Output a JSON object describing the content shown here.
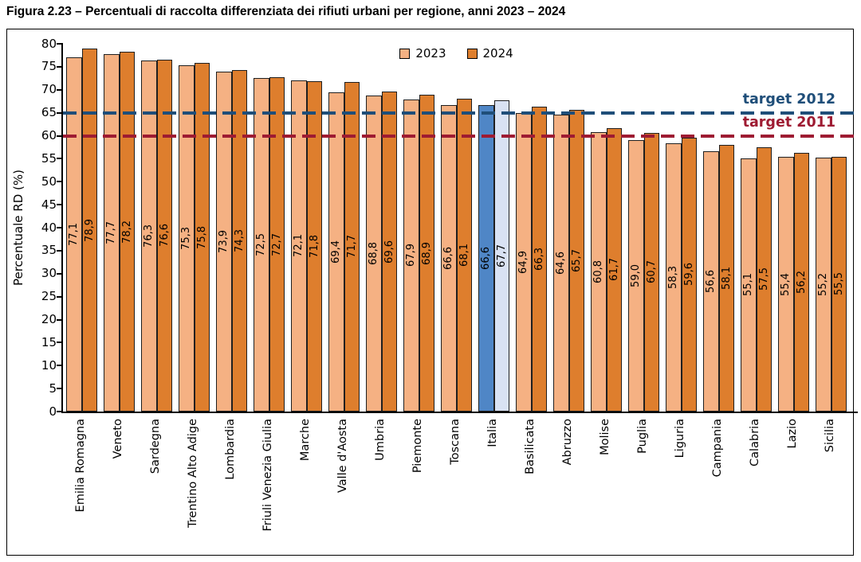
{
  "figure": {
    "title": "Figura 2.23 – Percentuali di raccolta differenziata dei rifiuti urbani per regione, anni 2023 – 2024"
  },
  "chart_data": {
    "type": "bar",
    "title": "Figura 2.23 – Percentuali di raccolta differenziata dei rifiuti urbani per regione, anni 2023 – 2024",
    "ylabel": "Percentuale RD (%)",
    "ylim": [
      0,
      80
    ],
    "yticks": [
      0,
      5,
      10,
      15,
      20,
      25,
      30,
      35,
      40,
      45,
      50,
      55,
      60,
      65,
      70,
      75,
      80
    ],
    "grid": false,
    "legend_position": "top-center",
    "categories": [
      "Emilia Romagna",
      "Veneto",
      "Sardegna",
      "Trentino Alto Adige",
      "Lombardia",
      "Friuli Venezia Giulia",
      "Marche",
      "Valle d'Aosta",
      "Umbria",
      "Piemonte",
      "Toscana",
      "Italia",
      "Basilicata",
      "Abruzzo",
      "Molise",
      "Puglia",
      "Liguria",
      "Campania",
      "Calabria",
      "Lazio",
      "Sicilia"
    ],
    "series": [
      {
        "name": "2023",
        "color": "#F5B183",
        "values": [
          77.1,
          77.7,
          76.3,
          75.3,
          73.9,
          72.5,
          72.1,
          69.4,
          68.8,
          67.9,
          66.6,
          66.6,
          64.9,
          64.6,
          60.8,
          59.0,
          58.3,
          56.6,
          55.1,
          55.4,
          55.2
        ]
      },
      {
        "name": "2024",
        "color": "#DE7E2D",
        "values": [
          78.9,
          78.2,
          76.6,
          75.8,
          74.3,
          72.7,
          71.8,
          71.7,
          69.6,
          68.9,
          68.1,
          67.7,
          66.3,
          65.7,
          61.7,
          60.7,
          59.6,
          58.1,
          57.5,
          56.2,
          55.5
        ]
      }
    ],
    "highlight_category": "Italia",
    "highlight_colors": {
      "2023": "#4F86C6",
      "2024": "#D9E2F3"
    },
    "target_lines": [
      {
        "label": "target 2012",
        "value": 65,
        "color": "#1F4E79"
      },
      {
        "label": "target 2011",
        "value": 60,
        "color": "#9E1B32"
      }
    ],
    "value_label_decimals": 1
  }
}
